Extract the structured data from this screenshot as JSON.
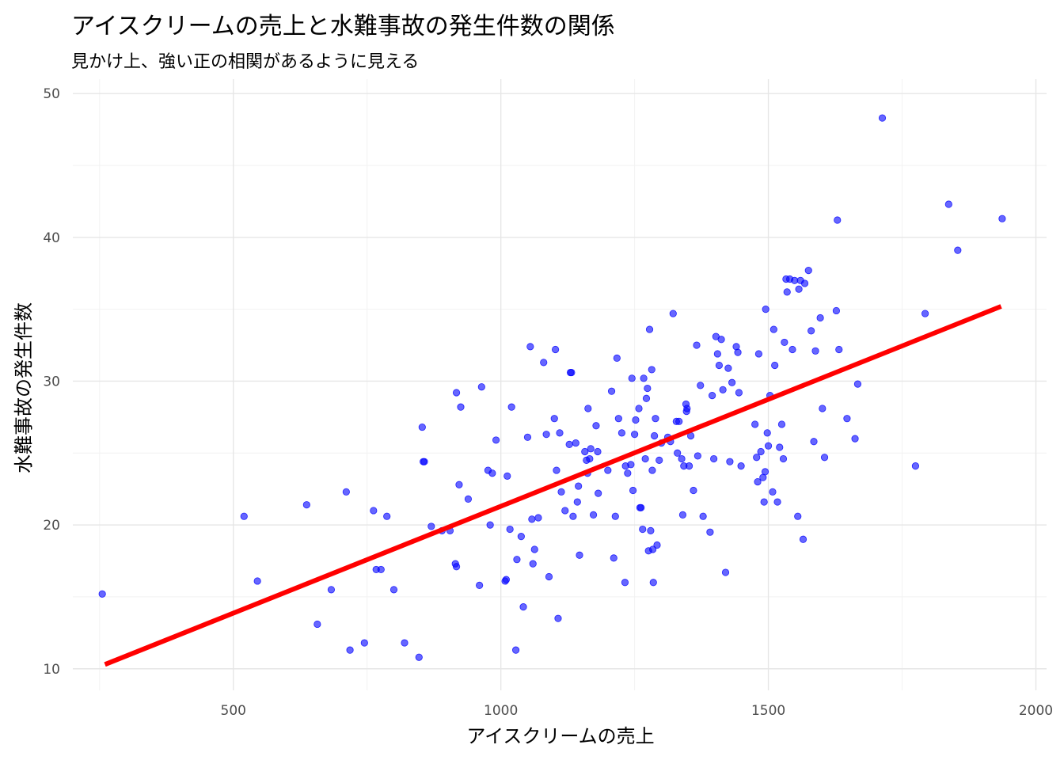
{
  "chart_data": {
    "type": "scatter",
    "title": "アイスクリームの売上と水難事故の発生件数の関係",
    "subtitle": "見かけ上、強い正の相関があるように見える",
    "xlabel": "アイスクリームの売上",
    "ylabel": "水難事故の発生件数",
    "xlim": [
      200,
      2020
    ],
    "ylim": [
      8.5,
      51
    ],
    "x_ticks": [
      500,
      1000,
      1500,
      2000
    ],
    "y_ticks": [
      10,
      20,
      30,
      40,
      50
    ],
    "grid": true,
    "point_color": "#0000ff",
    "line_color": "#ff0000",
    "regression_line": {
      "x": [
        260,
        1935
      ],
      "y": [
        10.3,
        35.2
      ]
    },
    "points": [
      [
        255,
        15.2
      ],
      [
        520,
        20.6
      ],
      [
        545,
        16.1
      ],
      [
        637,
        21.4
      ],
      [
        657,
        13.1
      ],
      [
        683,
        15.5
      ],
      [
        711,
        22.3
      ],
      [
        718,
        11.3
      ],
      [
        745,
        11.8
      ],
      [
        762,
        21.0
      ],
      [
        767,
        16.9
      ],
      [
        776,
        16.9
      ],
      [
        787,
        20.6
      ],
      [
        800,
        15.5
      ],
      [
        820,
        11.8
      ],
      [
        847,
        10.8
      ],
      [
        853,
        26.8
      ],
      [
        855,
        24.4
      ],
      [
        857,
        24.4
      ],
      [
        870,
        19.9
      ],
      [
        890,
        19.6
      ],
      [
        905,
        19.6
      ],
      [
        915,
        17.3
      ],
      [
        917,
        17.1
      ],
      [
        917,
        29.2
      ],
      [
        922,
        22.8
      ],
      [
        925,
        28.2
      ],
      [
        939,
        21.8
      ],
      [
        960,
        15.8
      ],
      [
        964,
        29.6
      ],
      [
        976,
        23.8
      ],
      [
        980,
        20.0
      ],
      [
        984,
        23.6
      ],
      [
        991,
        25.9
      ],
      [
        1008,
        16.1
      ],
      [
        1010,
        16.2
      ],
      [
        1012,
        23.4
      ],
      [
        1017,
        19.7
      ],
      [
        1020,
        28.2
      ],
      [
        1028,
        11.3
      ],
      [
        1030,
        17.6
      ],
      [
        1038,
        19.2
      ],
      [
        1042,
        14.3
      ],
      [
        1050,
        26.1
      ],
      [
        1055,
        32.4
      ],
      [
        1058,
        20.4
      ],
      [
        1060,
        17.3
      ],
      [
        1063,
        18.3
      ],
      [
        1070,
        20.5
      ],
      [
        1080,
        31.3
      ],
      [
        1085,
        26.3
      ],
      [
        1090,
        16.4
      ],
      [
        1100,
        27.4
      ],
      [
        1102,
        32.2
      ],
      [
        1104,
        23.8
      ],
      [
        1107,
        13.5
      ],
      [
        1110,
        26.4
      ],
      [
        1113,
        22.3
      ],
      [
        1120,
        21.0
      ],
      [
        1128,
        25.6
      ],
      [
        1130,
        30.6
      ],
      [
        1132,
        30.6
      ],
      [
        1135,
        20.6
      ],
      [
        1140,
        25.7
      ],
      [
        1143,
        21.6
      ],
      [
        1145,
        22.7
      ],
      [
        1147,
        17.9
      ],
      [
        1157,
        25.1
      ],
      [
        1160,
        24.5
      ],
      [
        1162,
        23.6
      ],
      [
        1163,
        28.1
      ],
      [
        1166,
        24.6
      ],
      [
        1168,
        25.3
      ],
      [
        1173,
        20.7
      ],
      [
        1178,
        26.9
      ],
      [
        1181,
        25.1
      ],
      [
        1182,
        22.2
      ],
      [
        1200,
        23.8
      ],
      [
        1207,
        29.3
      ],
      [
        1211,
        17.7
      ],
      [
        1214,
        20.6
      ],
      [
        1217,
        31.6
      ],
      [
        1220,
        27.4
      ],
      [
        1226,
        26.4
      ],
      [
        1232,
        16.0
      ],
      [
        1233,
        24.1
      ],
      [
        1237,
        23.6
      ],
      [
        1243,
        24.2
      ],
      [
        1245,
        30.2
      ],
      [
        1247,
        22.4
      ],
      [
        1250,
        26.3
      ],
      [
        1252,
        27.3
      ],
      [
        1258,
        28.1
      ],
      [
        1260,
        21.2
      ],
      [
        1262,
        21.2
      ],
      [
        1265,
        19.7
      ],
      [
        1267,
        30.2
      ],
      [
        1270,
        24.6
      ],
      [
        1272,
        28.8
      ],
      [
        1274,
        29.5
      ],
      [
        1276,
        18.2
      ],
      [
        1278,
        33.6
      ],
      [
        1280,
        19.6
      ],
      [
        1282,
        30.8
      ],
      [
        1283,
        23.8
      ],
      [
        1284,
        18.3
      ],
      [
        1285,
        16.0
      ],
      [
        1287,
        26.2
      ],
      [
        1289,
        27.4
      ],
      [
        1292,
        18.6
      ],
      [
        1296,
        24.5
      ],
      [
        1300,
        25.7
      ],
      [
        1312,
        26.1
      ],
      [
        1317,
        25.8
      ],
      [
        1322,
        34.7
      ],
      [
        1328,
        27.2
      ],
      [
        1330,
        25.0
      ],
      [
        1333,
        27.2
      ],
      [
        1338,
        24.6
      ],
      [
        1340,
        20.7
      ],
      [
        1342,
        24.1
      ],
      [
        1346,
        28.4
      ],
      [
        1347,
        27.9
      ],
      [
        1348,
        28.1
      ],
      [
        1352,
        24.1
      ],
      [
        1355,
        26.2
      ],
      [
        1360,
        22.4
      ],
      [
        1366,
        32.5
      ],
      [
        1368,
        24.8
      ],
      [
        1373,
        29.7
      ],
      [
        1378,
        20.6
      ],
      [
        1391,
        19.5
      ],
      [
        1395,
        29.0
      ],
      [
        1398,
        24.6
      ],
      [
        1402,
        33.1
      ],
      [
        1405,
        31.9
      ],
      [
        1408,
        31.1
      ],
      [
        1412,
        32.9
      ],
      [
        1415,
        29.4
      ],
      [
        1420,
        16.7
      ],
      [
        1425,
        30.9
      ],
      [
        1428,
        24.4
      ],
      [
        1432,
        29.9
      ],
      [
        1440,
        32.4
      ],
      [
        1443,
        32.0
      ],
      [
        1445,
        29.2
      ],
      [
        1449,
        24.1
      ],
      [
        1475,
        27.0
      ],
      [
        1478,
        24.7
      ],
      [
        1480,
        23.0
      ],
      [
        1482,
        31.9
      ],
      [
        1486,
        25.1
      ],
      [
        1490,
        23.3
      ],
      [
        1492,
        21.6
      ],
      [
        1494,
        23.7
      ],
      [
        1495,
        35.0
      ],
      [
        1498,
        26.4
      ],
      [
        1500,
        25.5
      ],
      [
        1503,
        29.0
      ],
      [
        1508,
        22.3
      ],
      [
        1510,
        33.6
      ],
      [
        1512,
        31.1
      ],
      [
        1517,
        21.6
      ],
      [
        1521,
        25.4
      ],
      [
        1525,
        27.0
      ],
      [
        1528,
        24.6
      ],
      [
        1530,
        32.7
      ],
      [
        1533,
        37.1
      ],
      [
        1535,
        36.2
      ],
      [
        1540,
        37.1
      ],
      [
        1545,
        32.2
      ],
      [
        1549,
        37.0
      ],
      [
        1555,
        20.6
      ],
      [
        1557,
        36.4
      ],
      [
        1560,
        37.0
      ],
      [
        1565,
        19.0
      ],
      [
        1568,
        36.8
      ],
      [
        1575,
        37.7
      ],
      [
        1580,
        33.5
      ],
      [
        1585,
        25.8
      ],
      [
        1588,
        32.1
      ],
      [
        1597,
        34.4
      ],
      [
        1601,
        28.1
      ],
      [
        1605,
        24.7
      ],
      [
        1627,
        34.9
      ],
      [
        1629,
        41.2
      ],
      [
        1632,
        32.2
      ],
      [
        1647,
        27.4
      ],
      [
        1662,
        26.0
      ],
      [
        1667,
        29.8
      ],
      [
        1713,
        48.3
      ],
      [
        1775,
        24.1
      ],
      [
        1793,
        34.7
      ],
      [
        1837,
        42.3
      ],
      [
        1854,
        39.1
      ],
      [
        1937,
        41.3
      ]
    ]
  }
}
